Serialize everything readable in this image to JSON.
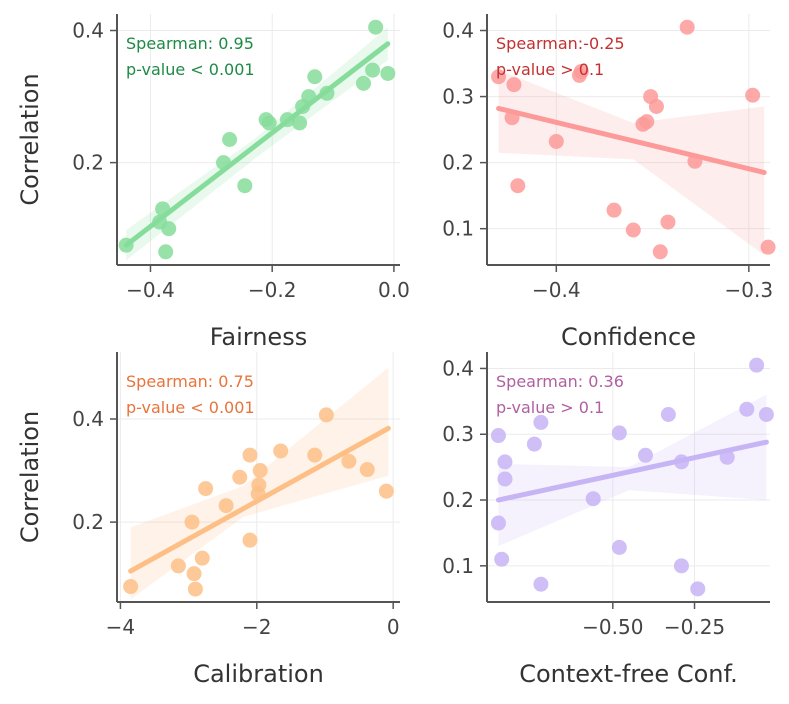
{
  "chart_data": [
    {
      "type": "scatter",
      "xlabel": "Fairness",
      "ylabel": "Correlation",
      "xlim": [
        -0.455,
        0.01
      ],
      "ylim": [
        0.045,
        0.425
      ],
      "xticks": [
        -0.4,
        -0.2,
        0.0
      ],
      "xtick_labels": [
        "−0.4",
        "−0.2",
        "0.0"
      ],
      "yticks": [
        0.2,
        0.4
      ],
      "ytick_labels": [
        "0.2",
        "0.4"
      ],
      "grid": true,
      "color": "#86dd9b",
      "annotation_color": "#1e8a45",
      "annotation": [
        "Spearman: 0.95",
        "p-value < 0.001"
      ],
      "fit": {
        "x": [
          -0.44,
          -0.01
        ],
        "y": [
          0.075,
          0.38
        ]
      },
      "band": {
        "x": [
          -0.44,
          -0.23,
          -0.01
        ],
        "lower": [
          0.052,
          0.205,
          0.355
        ],
        "upper": [
          0.098,
          0.235,
          0.405
        ]
      },
      "points": [
        [
          -0.44,
          0.075
        ],
        [
          -0.385,
          0.11
        ],
        [
          -0.38,
          0.13
        ],
        [
          -0.37,
          0.1
        ],
        [
          -0.375,
          0.065
        ],
        [
          -0.28,
          0.2
        ],
        [
          -0.27,
          0.235
        ],
        [
          -0.245,
          0.165
        ],
        [
          -0.21,
          0.265
        ],
        [
          -0.205,
          0.26
        ],
        [
          -0.175,
          0.265
        ],
        [
          -0.155,
          0.26
        ],
        [
          -0.15,
          0.285
        ],
        [
          -0.14,
          0.3
        ],
        [
          -0.13,
          0.33
        ],
        [
          -0.11,
          0.305
        ],
        [
          -0.05,
          0.32
        ],
        [
          -0.035,
          0.34
        ],
        [
          -0.03,
          0.405
        ],
        [
          -0.01,
          0.335
        ]
      ]
    },
    {
      "type": "scatter",
      "xlabel": "Confidence",
      "ylabel": "",
      "xlim": [
        -0.436,
        -0.289
      ],
      "ylim": [
        0.045,
        0.425
      ],
      "xticks": [
        -0.4,
        -0.3
      ],
      "xtick_labels": [
        "−0.4",
        "−0.3"
      ],
      "yticks": [
        0.1,
        0.2,
        0.3,
        0.4
      ],
      "ytick_labels": [
        "0.1",
        "0.2",
        "0.3",
        "0.4"
      ],
      "grid": true,
      "color": "#fb9a99",
      "annotation_color": "#c43030",
      "annotation": [
        "Spearman:-0.25",
        "p-value > 0.1"
      ],
      "fit": {
        "x": [
          -0.43,
          -0.292
        ],
        "y": [
          0.282,
          0.185
        ]
      },
      "band": {
        "x": [
          -0.43,
          -0.36,
          -0.292
        ],
        "lower": [
          0.215,
          0.205,
          0.06
        ],
        "upper": [
          0.34,
          0.26,
          0.285
        ]
      },
      "points": [
        [
          -0.43,
          0.33
        ],
        [
          -0.423,
          0.268
        ],
        [
          -0.422,
          0.318
        ],
        [
          -0.42,
          0.165
        ],
        [
          -0.4,
          0.232
        ],
        [
          -0.388,
          0.332
        ],
        [
          -0.387,
          0.338
        ],
        [
          -0.37,
          0.128
        ],
        [
          -0.36,
          0.098
        ],
        [
          -0.355,
          0.258
        ],
        [
          -0.353,
          0.262
        ],
        [
          -0.351,
          0.3
        ],
        [
          -0.348,
          0.285
        ],
        [
          -0.346,
          0.065
        ],
        [
          -0.342,
          0.11
        ],
        [
          -0.332,
          0.405
        ],
        [
          -0.328,
          0.202
        ],
        [
          -0.298,
          0.302
        ],
        [
          -0.29,
          0.072
        ]
      ]
    },
    {
      "type": "scatter",
      "xlabel": "Calibration",
      "ylabel": "Correlation",
      "xlim": [
        -4.05,
        0.1
      ],
      "ylim": [
        0.045,
        0.53
      ],
      "xticks": [
        -4,
        -2,
        0
      ],
      "xtick_labels": [
        "−4",
        "−2",
        "0"
      ],
      "yticks": [
        0.2,
        0.4
      ],
      "ytick_labels": [
        "0.2",
        "0.4"
      ],
      "grid": true,
      "color": "#fdbf86",
      "annotation_color": "#e8743b",
      "annotation": [
        "Spearman: 0.75",
        "p-value < 0.001"
      ],
      "fit": {
        "x": [
          -3.85,
          -0.07
        ],
        "y": [
          0.105,
          0.382
        ]
      },
      "band": {
        "x": [
          -3.85,
          -2.2,
          -0.07
        ],
        "lower": [
          0.05,
          0.21,
          0.29
        ],
        "upper": [
          0.19,
          0.27,
          0.5
        ]
      },
      "points": [
        [
          -3.85,
          0.075
        ],
        [
          -3.15,
          0.115
        ],
        [
          -2.95,
          0.2
        ],
        [
          -2.92,
          0.1
        ],
        [
          -2.9,
          0.07
        ],
        [
          -2.8,
          0.13
        ],
        [
          -2.75,
          0.265
        ],
        [
          -2.45,
          0.232
        ],
        [
          -2.25,
          0.287
        ],
        [
          -2.1,
          0.33
        ],
        [
          -2.1,
          0.165
        ],
        [
          -1.98,
          0.255
        ],
        [
          -1.97,
          0.272
        ],
        [
          -1.95,
          0.3
        ],
        [
          -1.65,
          0.338
        ],
        [
          -1.15,
          0.33
        ],
        [
          -0.98,
          0.408
        ],
        [
          -0.65,
          0.318
        ],
        [
          -0.38,
          0.302
        ],
        [
          -0.1,
          0.26
        ]
      ]
    },
    {
      "type": "scatter",
      "xlabel": "Context-free Conf.",
      "ylabel": "",
      "xlim": [
        -0.885,
        -0.019
      ],
      "ylim": [
        0.045,
        0.425
      ],
      "xticks": [
        -0.5,
        -0.25
      ],
      "xtick_labels": [
        "−0.50",
        "−0.25"
      ],
      "yticks": [
        0.1,
        0.2,
        0.3,
        0.4
      ],
      "ytick_labels": [
        "0.1",
        "0.2",
        "0.3",
        "0.4"
      ],
      "grid": true,
      "color": "#c7b4f5",
      "annotation_color": "#b060a0",
      "annotation": [
        "Spearman: 0.36",
        "p-value > 0.1"
      ],
      "fit": {
        "x": [
          -0.85,
          -0.03
        ],
        "y": [
          0.2,
          0.288
        ]
      },
      "band": {
        "x": [
          -0.85,
          -0.45,
          -0.03
        ],
        "lower": [
          0.13,
          0.215,
          0.2
        ],
        "upper": [
          0.255,
          0.25,
          0.36
        ]
      },
      "points": [
        [
          -0.85,
          0.298
        ],
        [
          -0.85,
          0.165
        ],
        [
          -0.84,
          0.11
        ],
        [
          -0.83,
          0.258
        ],
        [
          -0.83,
          0.232
        ],
        [
          -0.74,
          0.285
        ],
        [
          -0.72,
          0.318
        ],
        [
          -0.72,
          0.072
        ],
        [
          -0.56,
          0.202
        ],
        [
          -0.48,
          0.128
        ],
        [
          -0.48,
          0.302
        ],
        [
          -0.4,
          0.268
        ],
        [
          -0.33,
          0.33
        ],
        [
          -0.29,
          0.258
        ],
        [
          -0.29,
          0.1
        ],
        [
          -0.24,
          0.065
        ],
        [
          -0.15,
          0.265
        ],
        [
          -0.09,
          0.338
        ],
        [
          -0.06,
          0.405
        ],
        [
          -0.03,
          0.33
        ]
      ]
    }
  ]
}
